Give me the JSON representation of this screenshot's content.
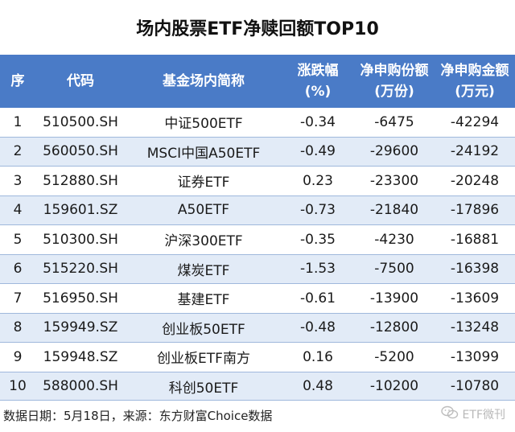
{
  "title": "场内股票ETF净赎回额TOP10",
  "headers": [
    [
      "序"
    ],
    [
      "代码"
    ],
    [
      "基金场内简称"
    ],
    [
      "涨跌幅",
      "(%)"
    ],
    [
      "净申购份额",
      "(万份)"
    ],
    [
      "净申购金额",
      "(万元)"
    ]
  ],
  "rows": [
    [
      "1",
      "510500.SH",
      "中证500ETF",
      "-0.34",
      "-6475",
      "-42294"
    ],
    [
      "2",
      "560050.SH",
      "MSCI中国A50ETF",
      "-0.49",
      "-29600",
      "-24192"
    ],
    [
      "3",
      "512880.SH",
      "证券ETF",
      "0.23",
      "-23300",
      "-20248"
    ],
    [
      "4",
      "159601.SZ",
      "A50ETF",
      "-0.73",
      "-21840",
      "-17896"
    ],
    [
      "5",
      "510300.SH",
      "沪深300ETF",
      "-0.35",
      "-4230",
      "-16881"
    ],
    [
      "6",
      "515220.SH",
      "煤炭ETF",
      "-1.53",
      "-7500",
      "-16398"
    ],
    [
      "7",
      "516950.SH",
      "基建ETF",
      "-0.61",
      "-13900",
      "-13609"
    ],
    [
      "8",
      "159949.SZ",
      "创业板50ETF",
      "-0.48",
      "-12800",
      "-13248"
    ],
    [
      "9",
      "159948.SZ",
      "创业板ETF南方",
      "0.16",
      "-5200",
      "-13099"
    ],
    [
      "10",
      "588000.SH",
      "科创50ETF",
      "0.48",
      "-10200",
      "-10780"
    ]
  ],
  "footer": {
    "note": "数据日期：5月18日，来源：东方财富Choice数据",
    "watermark": "ETF微刊",
    "watermark_icon": "wechat-icon"
  },
  "colors": {
    "header_bg": "#4a7bc7",
    "header_text": "#ffffff",
    "row_alt_bg": "#e2ebf7",
    "row_border": "#9fb8dc"
  }
}
